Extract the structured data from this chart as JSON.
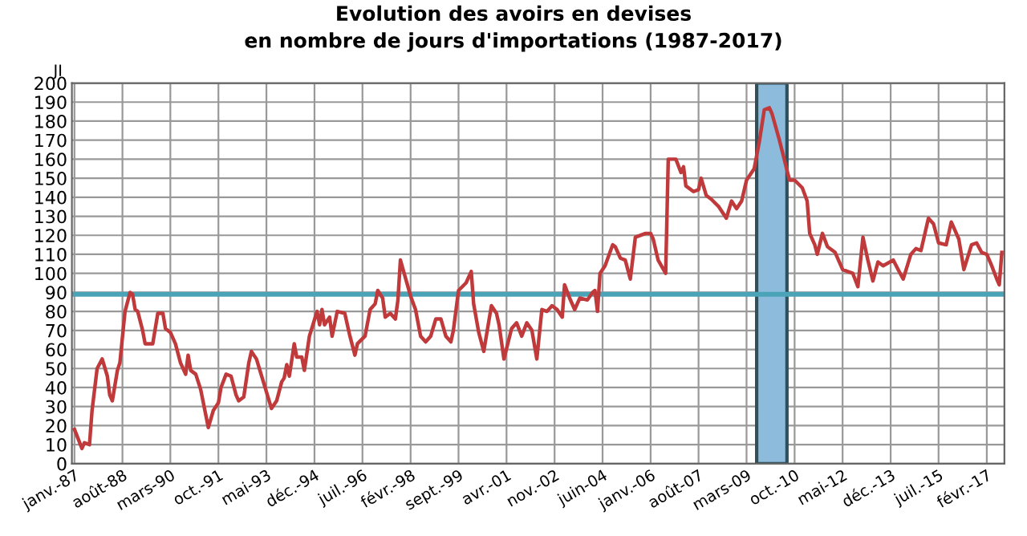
{
  "chart_data": {
    "type": "line",
    "title": "Evolution des avoirs en devises\nen nombre de jours d'importations (1987-2017)",
    "ylabel": "JI",
    "x": [
      "1987-01",
      "1987-04",
      "1987-05",
      "1987-07",
      "1987-08",
      "1987-10",
      "1987-12",
      "1988-02",
      "1988-03",
      "1988-04",
      "1988-06",
      "1988-07",
      "1988-09",
      "1988-11",
      "1988-12",
      "1989-01",
      "1989-02",
      "1989-04",
      "1989-05",
      "1989-08",
      "1989-10",
      "1989-12",
      "1990-01",
      "1990-03",
      "1990-05",
      "1990-07",
      "1990-09",
      "1990-10",
      "1990-11",
      "1991-01",
      "1991-03",
      "1991-06",
      "1991-08",
      "1991-10",
      "1991-11",
      "1992-01",
      "1992-03",
      "1992-05",
      "1992-06",
      "1992-08",
      "1992-10",
      "1992-11",
      "1993-01",
      "1993-04",
      "1993-07",
      "1993-09",
      "1993-11",
      "1993-12",
      "1994-01",
      "1994-02",
      "1994-04",
      "1994-05",
      "1994-07",
      "1994-08",
      "1994-10",
      "1995-01",
      "1995-02",
      "1995-03",
      "1995-04",
      "1995-06",
      "1995-07",
      "1995-09",
      "1995-12",
      "1996-02",
      "1996-04",
      "1996-05",
      "1996-08",
      "1996-10",
      "1996-12",
      "1997-01",
      "1997-03",
      "1997-04",
      "1997-06",
      "1997-08",
      "1997-09",
      "1997-10",
      "1998-02",
      "1998-04",
      "1998-06",
      "1998-08",
      "1998-10",
      "1998-12",
      "1999-02",
      "1999-04",
      "1999-06",
      "1999-07",
      "1999-09",
      "1999-12",
      "2000-02",
      "2000-03",
      "2000-05",
      "2000-07",
      "2000-10",
      "2000-12",
      "2001-01",
      "2001-03",
      "2001-06",
      "2001-08",
      "2001-10",
      "2001-12",
      "2002-02",
      "2002-04",
      "2002-06",
      "2002-08",
      "2002-10",
      "2002-12",
      "2003-02",
      "2003-03",
      "2003-05",
      "2003-07",
      "2003-09",
      "2003-12",
      "2004-02",
      "2004-03",
      "2004-04",
      "2004-05",
      "2004-07",
      "2004-10",
      "2004-11",
      "2005-01",
      "2005-03",
      "2005-05",
      "2005-07",
      "2005-11",
      "2006-01",
      "2006-02",
      "2006-04",
      "2006-07",
      "2006-08",
      "2006-11",
      "2007-01",
      "2007-02",
      "2007-03",
      "2007-06",
      "2007-08",
      "2007-09",
      "2007-11",
      "2008-01",
      "2008-04",
      "2008-07",
      "2008-09",
      "2008-11",
      "2009-01",
      "2009-03",
      "2009-06",
      "2009-08",
      "2009-10",
      "2009-12",
      "2010-01",
      "2010-04",
      "2010-08",
      "2010-10",
      "2011-01",
      "2011-03",
      "2011-04",
      "2011-06",
      "2011-07",
      "2011-09",
      "2011-11",
      "2012-02",
      "2012-05",
      "2012-07",
      "2012-09",
      "2012-11",
      "2013-01",
      "2013-03",
      "2013-05",
      "2013-07",
      "2013-09",
      "2014-01",
      "2014-03",
      "2014-05",
      "2014-08",
      "2014-10",
      "2014-12",
      "2015-03",
      "2015-05",
      "2015-07",
      "2015-10",
      "2015-12",
      "2016-03",
      "2016-05",
      "2016-08",
      "2016-10",
      "2016-12",
      "2017-02",
      "2017-04",
      "2017-06",
      "2017-07",
      "2017-08"
    ],
    "series": [
      {
        "color": "#c0393b",
        "values": [
          18,
          8,
          11,
          10,
          28,
          50,
          55,
          46,
          36,
          33,
          49,
          53,
          80,
          90,
          89,
          81,
          80,
          70,
          63,
          63,
          79,
          79,
          71,
          69,
          63,
          53,
          47,
          57,
          49,
          47,
          39,
          19,
          28,
          32,
          40,
          47,
          46,
          36,
          33,
          35,
          53,
          59,
          55,
          42,
          29,
          33,
          43,
          45,
          52,
          46,
          63,
          56,
          56,
          49,
          67,
          80,
          73,
          81,
          73,
          77,
          67,
          80,
          79,
          67,
          57,
          63,
          67,
          81,
          84,
          91,
          87,
          77,
          79,
          76,
          86,
          107,
          88,
          81,
          67,
          64,
          67,
          76,
          76,
          67,
          64,
          70,
          91,
          95,
          101,
          84,
          69,
          59,
          83,
          79,
          73,
          55,
          71,
          74,
          67,
          74,
          70,
          55,
          81,
          80,
          83,
          81,
          77,
          94,
          87,
          81,
          87,
          86,
          90,
          91,
          80,
          100,
          104,
          115,
          114,
          108,
          107,
          97,
          119,
          121,
          121,
          118,
          107,
          100,
          160,
          160,
          153,
          156,
          146,
          143,
          144,
          150,
          141,
          139,
          135,
          129,
          138,
          134,
          138,
          149,
          155,
          169,
          186,
          187,
          184,
          170,
          149,
          149,
          145,
          138,
          121,
          115,
          110,
          121,
          114,
          111,
          102,
          101,
          100,
          93,
          119,
          107,
          96,
          106,
          104,
          107,
          102,
          97,
          110,
          113,
          112,
          129,
          126,
          116,
          115,
          127,
          118,
          102,
          115,
          116,
          111,
          110,
          104,
          97,
          94,
          111
        ]
      }
    ],
    "xlim": [
      "1986-12",
      "2017-09"
    ],
    "xticks": [
      {
        "value": "1987-01",
        "label": "janv.-87"
      },
      {
        "value": "1988-08",
        "label": "août-88"
      },
      {
        "value": "1990-03",
        "label": "mars-90"
      },
      {
        "value": "1991-10",
        "label": "oct.-91"
      },
      {
        "value": "1993-05",
        "label": "mai-93"
      },
      {
        "value": "1994-12",
        "label": "déc.-94"
      },
      {
        "value": "1996-07",
        "label": "juil.-96"
      },
      {
        "value": "1998-02",
        "label": "févr.-98"
      },
      {
        "value": "1999-09",
        "label": "sept.-99"
      },
      {
        "value": "2001-04",
        "label": "avr.-01"
      },
      {
        "value": "2002-11",
        "label": "nov.-02"
      },
      {
        "value": "2004-06",
        "label": "juin-04"
      },
      {
        "value": "2006-01",
        "label": "janv.-06"
      },
      {
        "value": "2007-08",
        "label": "août-07"
      },
      {
        "value": "2009-03",
        "label": "mars-09"
      },
      {
        "value": "2010-10",
        "label": "oct.-10"
      },
      {
        "value": "2012-05",
        "label": "mai-12"
      },
      {
        "value": "2013-12",
        "label": "déc.-13"
      },
      {
        "value": "2015-07",
        "label": "juil.-15"
      },
      {
        "value": "2017-02",
        "label": "févr.-17"
      }
    ],
    "ylim": [
      0,
      200
    ],
    "yticks": [
      0,
      10,
      20,
      30,
      40,
      50,
      60,
      70,
      80,
      90,
      100,
      110,
      120,
      130,
      140,
      150,
      160,
      170,
      180,
      190,
      200
    ],
    "ref_lines": [
      {
        "axis": "y",
        "value": 89,
        "color": "#4ba3b8"
      }
    ],
    "bands": [
      {
        "axis": "x",
        "from": "2009-07",
        "to": "2010-07",
        "color": "#8dbbdc"
      }
    ],
    "grid": true,
    "legend": false,
    "marker": "none",
    "line_style": "solid"
  }
}
